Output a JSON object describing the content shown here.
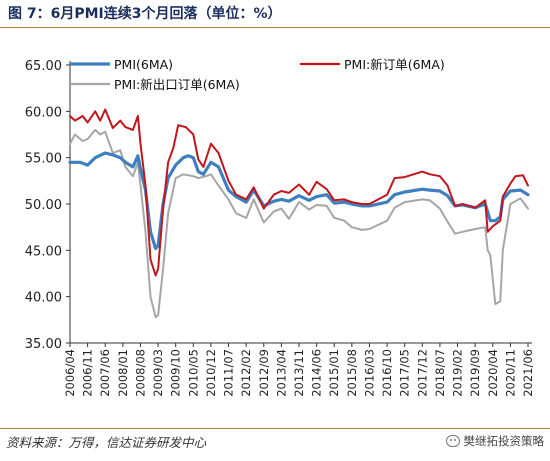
{
  "header": {
    "title": "图 7：6月PMI连续3个月回落（单位：%）"
  },
  "footer": {
    "source": "资料来源：万得，信达证券研发中心",
    "watermark": "樊继拓投资策略"
  },
  "colors": {
    "pmi": "#3f7fbf",
    "new_orders": "#c0161c",
    "export_orders": "#a6a6a6"
  },
  "chart_data": {
    "type": "line",
    "title": "",
    "xlabel": "",
    "ylabel": "",
    "ylim": [
      35,
      65
    ],
    "yticks": [
      35,
      40,
      45,
      50,
      55,
      60,
      65
    ],
    "y_tick_format": "0.00",
    "x_ticks": [
      "2006/04",
      "2006/11",
      "2007/06",
      "2008/01",
      "2008/08",
      "2009/03",
      "2009/10",
      "2010/05",
      "2010/12",
      "2011/07",
      "2012/02",
      "2012/09",
      "2013/04",
      "2013/11",
      "2014/06",
      "2015/01",
      "2015/08",
      "2016/03",
      "2016/10",
      "2017/05",
      "2017/12",
      "2018/07",
      "2019/02",
      "2019/09",
      "2020/04",
      "2020/11",
      "2021/06"
    ],
    "grid": false,
    "legend": "top",
    "series": [
      {
        "name": "PMI(6MA)",
        "color_key": "pmi",
        "points": [
          [
            "2006/04",
            54.5
          ],
          [
            "2006/08",
            54.5
          ],
          [
            "2006/11",
            54.2
          ],
          [
            "2007/02",
            55.0
          ],
          [
            "2007/06",
            55.5
          ],
          [
            "2007/09",
            55.3
          ],
          [
            "2007/12",
            55.0
          ],
          [
            "2008/02",
            54.5
          ],
          [
            "2008/05",
            54.0
          ],
          [
            "2008/07",
            55.2
          ],
          [
            "2008/08",
            53.8
          ],
          [
            "2008/10",
            51.5
          ],
          [
            "2008/12",
            47.0
          ],
          [
            "2009/02",
            45.2
          ],
          [
            "2009/03",
            45.5
          ],
          [
            "2009/05",
            50.0
          ],
          [
            "2009/07",
            52.8
          ],
          [
            "2009/10",
            54.2
          ],
          [
            "2010/01",
            55.0
          ],
          [
            "2010/03",
            55.2
          ],
          [
            "2010/05",
            55.0
          ],
          [
            "2010/07",
            53.5
          ],
          [
            "2010/09",
            53.2
          ],
          [
            "2010/12",
            54.5
          ],
          [
            "2011/03",
            54.0
          ],
          [
            "2011/07",
            51.5
          ],
          [
            "2011/10",
            50.8
          ],
          [
            "2012/02",
            50.2
          ],
          [
            "2012/05",
            51.5
          ],
          [
            "2012/09",
            49.8
          ],
          [
            "2013/01",
            50.3
          ],
          [
            "2013/04",
            50.5
          ],
          [
            "2013/07",
            50.3
          ],
          [
            "2013/11",
            50.9
          ],
          [
            "2014/03",
            50.4
          ],
          [
            "2014/06",
            50.8
          ],
          [
            "2014/10",
            51.0
          ],
          [
            "2015/01",
            50.1
          ],
          [
            "2015/05",
            50.2
          ],
          [
            "2015/08",
            50.0
          ],
          [
            "2015/12",
            49.8
          ],
          [
            "2016/03",
            49.8
          ],
          [
            "2016/10",
            50.2
          ],
          [
            "2017/01",
            51.0
          ],
          [
            "2017/05",
            51.3
          ],
          [
            "2017/12",
            51.6
          ],
          [
            "2018/03",
            51.5
          ],
          [
            "2018/07",
            51.4
          ],
          [
            "2018/10",
            50.9
          ],
          [
            "2019/01",
            49.8
          ],
          [
            "2019/04",
            49.9
          ],
          [
            "2019/09",
            49.6
          ],
          [
            "2020/01",
            50.0
          ],
          [
            "2020/03",
            48.2
          ],
          [
            "2020/05",
            48.2
          ],
          [
            "2020/07",
            48.6
          ],
          [
            "2020/08",
            50.5
          ],
          [
            "2020/11",
            51.4
          ],
          [
            "2021/03",
            51.5
          ],
          [
            "2021/06",
            51.0
          ]
        ]
      },
      {
        "name": "PMI:新订单(6MA)",
        "color_key": "new_orders",
        "points": [
          [
            "2006/04",
            59.5
          ],
          [
            "2006/06",
            59.0
          ],
          [
            "2006/09",
            59.5
          ],
          [
            "2006/11",
            58.8
          ],
          [
            "2007/02",
            60.0
          ],
          [
            "2007/04",
            59.0
          ],
          [
            "2007/06",
            60.2
          ],
          [
            "2007/09",
            58.2
          ],
          [
            "2007/12",
            59.0
          ],
          [
            "2008/02",
            58.3
          ],
          [
            "2008/05",
            58.0
          ],
          [
            "2008/07",
            59.5
          ],
          [
            "2008/08",
            56.5
          ],
          [
            "2008/10",
            52.0
          ],
          [
            "2008/12",
            44.0
          ],
          [
            "2009/02",
            42.3
          ],
          [
            "2009/03",
            43.0
          ],
          [
            "2009/05",
            49.5
          ],
          [
            "2009/07",
            54.5
          ],
          [
            "2009/09",
            56.0
          ],
          [
            "2009/11",
            58.5
          ],
          [
            "2010/02",
            58.3
          ],
          [
            "2010/05",
            57.5
          ],
          [
            "2010/07",
            54.8
          ],
          [
            "2010/09",
            54.0
          ],
          [
            "2010/12",
            56.5
          ],
          [
            "2011/03",
            55.5
          ],
          [
            "2011/07",
            52.5
          ],
          [
            "2011/10",
            51.0
          ],
          [
            "2012/02",
            50.5
          ],
          [
            "2012/05",
            51.8
          ],
          [
            "2012/09",
            49.5
          ],
          [
            "2013/01",
            51.0
          ],
          [
            "2013/04",
            51.4
          ],
          [
            "2013/07",
            51.2
          ],
          [
            "2013/11",
            52.1
          ],
          [
            "2014/03",
            51.0
          ],
          [
            "2014/06",
            52.4
          ],
          [
            "2014/10",
            51.6
          ],
          [
            "2015/01",
            50.4
          ],
          [
            "2015/05",
            50.5
          ],
          [
            "2015/08",
            50.2
          ],
          [
            "2015/12",
            50.0
          ],
          [
            "2016/03",
            50.0
          ],
          [
            "2016/10",
            51.0
          ],
          [
            "2017/01",
            52.8
          ],
          [
            "2017/05",
            52.9
          ],
          [
            "2017/12",
            53.5
          ],
          [
            "2018/03",
            53.2
          ],
          [
            "2018/07",
            53.0
          ],
          [
            "2018/10",
            52.0
          ],
          [
            "2019/01",
            49.8
          ],
          [
            "2019/04",
            50.0
          ],
          [
            "2019/09",
            49.6
          ],
          [
            "2020/01",
            50.4
          ],
          [
            "2020/02",
            47.0
          ],
          [
            "2020/04",
            47.6
          ],
          [
            "2020/07",
            48.2
          ],
          [
            "2020/08",
            50.8
          ],
          [
            "2020/11",
            52.2
          ],
          [
            "2021/01",
            53.0
          ],
          [
            "2021/04",
            53.1
          ],
          [
            "2021/06",
            52.0
          ]
        ]
      },
      {
        "name": "PMI:新出口订单(6MA)",
        "color_key": "export_orders",
        "points": [
          [
            "2006/04",
            56.5
          ],
          [
            "2006/06",
            57.5
          ],
          [
            "2006/09",
            56.8
          ],
          [
            "2006/11",
            57.0
          ],
          [
            "2007/02",
            58.0
          ],
          [
            "2007/04",
            57.5
          ],
          [
            "2007/06",
            57.8
          ],
          [
            "2007/09",
            55.5
          ],
          [
            "2007/12",
            55.8
          ],
          [
            "2008/02",
            54.0
          ],
          [
            "2008/05",
            53.0
          ],
          [
            "2008/07",
            54.5
          ],
          [
            "2008/08",
            52.0
          ],
          [
            "2008/10",
            47.0
          ],
          [
            "2008/12",
            40.0
          ],
          [
            "2009/02",
            37.8
          ],
          [
            "2009/03",
            38.0
          ],
          [
            "2009/05",
            43.0
          ],
          [
            "2009/07",
            49.0
          ],
          [
            "2009/10",
            52.8
          ],
          [
            "2010/01",
            53.2
          ],
          [
            "2010/05",
            53.0
          ],
          [
            "2010/07",
            52.8
          ],
          [
            "2010/10",
            53.0
          ],
          [
            "2010/12",
            53.2
          ],
          [
            "2011/03",
            52.0
          ],
          [
            "2011/07",
            50.5
          ],
          [
            "2011/10",
            49.0
          ],
          [
            "2012/02",
            48.5
          ],
          [
            "2012/05",
            50.5
          ],
          [
            "2012/09",
            48.0
          ],
          [
            "2013/01",
            49.2
          ],
          [
            "2013/04",
            49.5
          ],
          [
            "2013/07",
            48.4
          ],
          [
            "2013/11",
            50.2
          ],
          [
            "2014/03",
            49.4
          ],
          [
            "2014/06",
            49.9
          ],
          [
            "2014/10",
            49.8
          ],
          [
            "2015/01",
            48.5
          ],
          [
            "2015/05",
            48.2
          ],
          [
            "2015/08",
            47.5
          ],
          [
            "2015/12",
            47.2
          ],
          [
            "2016/03",
            47.3
          ],
          [
            "2016/10",
            48.2
          ],
          [
            "2017/01",
            49.6
          ],
          [
            "2017/05",
            50.2
          ],
          [
            "2017/12",
            50.5
          ],
          [
            "2018/03",
            50.4
          ],
          [
            "2018/07",
            49.5
          ],
          [
            "2018/10",
            48.1
          ],
          [
            "2019/01",
            46.8
          ],
          [
            "2019/04",
            47.0
          ],
          [
            "2019/09",
            47.3
          ],
          [
            "2020/01",
            47.5
          ],
          [
            "2020/02",
            45.0
          ],
          [
            "2020/03",
            44.5
          ],
          [
            "2020/05",
            39.2
          ],
          [
            "2020/07",
            39.5
          ],
          [
            "2020/08",
            45.0
          ],
          [
            "2020/11",
            50.0
          ],
          [
            "2021/03",
            50.6
          ],
          [
            "2021/06",
            49.5
          ]
        ]
      }
    ]
  }
}
